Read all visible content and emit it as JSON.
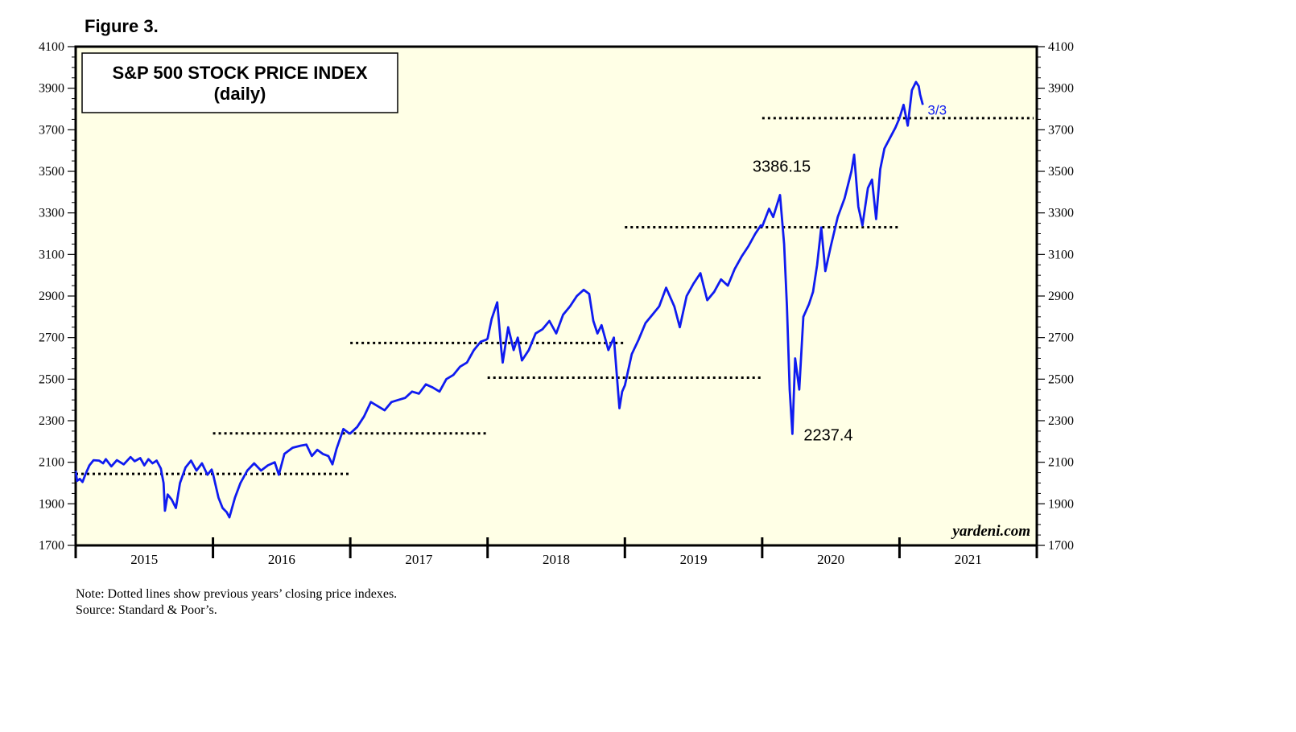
{
  "figure_label": "Figure 3.",
  "note": "Note: Dotted lines show previous years’ closing price indexes.",
  "source": "Source: Standard & Poor’s.",
  "colors": {
    "plot_background": "#ffffe6",
    "series": "#0f1bf0",
    "frame": "#000000"
  },
  "chart_data": {
    "type": "line",
    "title": "S&P 500 STOCK PRICE INDEX",
    "subtitle": "(daily)",
    "watermark": "yardeni.com",
    "ylim": [
      1700,
      4100
    ],
    "y_ticks": [
      1700,
      1900,
      2100,
      2300,
      2500,
      2700,
      2900,
      3100,
      3300,
      3500,
      3700,
      3900,
      4100
    ],
    "x_range": [
      2015.0,
      2022.0
    ],
    "x_boundaries": [
      2015,
      2016,
      2017,
      2018,
      2019,
      2020,
      2021,
      2022
    ],
    "x_labels": [
      "2015",
      "2016",
      "2017",
      "2018",
      "2019",
      "2020",
      "2021"
    ],
    "grid": false,
    "series": [
      {
        "values": [
          [
            2015.0,
            2058
          ],
          [
            2015.01,
            2010
          ],
          [
            2015.03,
            2020
          ],
          [
            2015.05,
            2005
          ],
          [
            2015.07,
            2040
          ],
          [
            2015.1,
            2085
          ],
          [
            2015.13,
            2110
          ],
          [
            2015.17,
            2108
          ],
          [
            2015.2,
            2095
          ],
          [
            2015.22,
            2115
          ],
          [
            2015.26,
            2080
          ],
          [
            2015.3,
            2110
          ],
          [
            2015.35,
            2090
          ],
          [
            2015.4,
            2125
          ],
          [
            2015.43,
            2105
          ],
          [
            2015.47,
            2120
          ],
          [
            2015.5,
            2085
          ],
          [
            2015.53,
            2115
          ],
          [
            2015.56,
            2095
          ],
          [
            2015.59,
            2108
          ],
          [
            2015.62,
            2070
          ],
          [
            2015.64,
            2000
          ],
          [
            2015.65,
            1867
          ],
          [
            2015.67,
            1945
          ],
          [
            2015.7,
            1920
          ],
          [
            2015.73,
            1880
          ],
          [
            2015.76,
            2000
          ],
          [
            2015.8,
            2075
          ],
          [
            2015.84,
            2108
          ],
          [
            2015.88,
            2060
          ],
          [
            2015.92,
            2095
          ],
          [
            2015.96,
            2040
          ],
          [
            2015.99,
            2065
          ],
          [
            2016.0,
            2044
          ],
          [
            2016.04,
            1930
          ],
          [
            2016.07,
            1880
          ],
          [
            2016.1,
            1860
          ],
          [
            2016.12,
            1835
          ],
          [
            2016.16,
            1930
          ],
          [
            2016.2,
            2000
          ],
          [
            2016.25,
            2060
          ],
          [
            2016.3,
            2095
          ],
          [
            2016.35,
            2060
          ],
          [
            2016.4,
            2085
          ],
          [
            2016.45,
            2100
          ],
          [
            2016.48,
            2040
          ],
          [
            2016.52,
            2140
          ],
          [
            2016.58,
            2170
          ],
          [
            2016.64,
            2180
          ],
          [
            2016.68,
            2185
          ],
          [
            2016.72,
            2130
          ],
          [
            2016.76,
            2160
          ],
          [
            2016.8,
            2140
          ],
          [
            2016.84,
            2130
          ],
          [
            2016.87,
            2090
          ],
          [
            2016.9,
            2165
          ],
          [
            2016.95,
            2260
          ],
          [
            2016.99,
            2240
          ],
          [
            2017.0,
            2239
          ],
          [
            2017.05,
            2270
          ],
          [
            2017.1,
            2320
          ],
          [
            2017.15,
            2390
          ],
          [
            2017.2,
            2370
          ],
          [
            2017.25,
            2350
          ],
          [
            2017.3,
            2390
          ],
          [
            2017.35,
            2400
          ],
          [
            2017.4,
            2410
          ],
          [
            2017.45,
            2440
          ],
          [
            2017.5,
            2430
          ],
          [
            2017.55,
            2475
          ],
          [
            2017.6,
            2460
          ],
          [
            2017.65,
            2440
          ],
          [
            2017.7,
            2500
          ],
          [
            2017.75,
            2520
          ],
          [
            2017.8,
            2560
          ],
          [
            2017.85,
            2580
          ],
          [
            2017.9,
            2640
          ],
          [
            2017.95,
            2680
          ],
          [
            2017.99,
            2690
          ],
          [
            2018.0,
            2695
          ],
          [
            2018.03,
            2790
          ],
          [
            2018.07,
            2870
          ],
          [
            2018.1,
            2640
          ],
          [
            2018.11,
            2580
          ],
          [
            2018.15,
            2750
          ],
          [
            2018.19,
            2640
          ],
          [
            2018.22,
            2700
          ],
          [
            2018.25,
            2590
          ],
          [
            2018.3,
            2640
          ],
          [
            2018.35,
            2720
          ],
          [
            2018.4,
            2740
          ],
          [
            2018.45,
            2780
          ],
          [
            2018.5,
            2720
          ],
          [
            2018.55,
            2810
          ],
          [
            2018.6,
            2850
          ],
          [
            2018.65,
            2900
          ],
          [
            2018.7,
            2930
          ],
          [
            2018.74,
            2910
          ],
          [
            2018.77,
            2780
          ],
          [
            2018.8,
            2720
          ],
          [
            2018.83,
            2760
          ],
          [
            2018.88,
            2640
          ],
          [
            2018.92,
            2700
          ],
          [
            2018.96,
            2360
          ],
          [
            2018.98,
            2440
          ],
          [
            2019.0,
            2470
          ],
          [
            2019.05,
            2620
          ],
          [
            2019.1,
            2690
          ],
          [
            2019.15,
            2770
          ],
          [
            2019.2,
            2810
          ],
          [
            2019.25,
            2850
          ],
          [
            2019.3,
            2940
          ],
          [
            2019.36,
            2850
          ],
          [
            2019.4,
            2750
          ],
          [
            2019.45,
            2900
          ],
          [
            2019.5,
            2960
          ],
          [
            2019.55,
            3010
          ],
          [
            2019.6,
            2880
          ],
          [
            2019.65,
            2920
          ],
          [
            2019.7,
            2980
          ],
          [
            2019.75,
            2950
          ],
          [
            2019.8,
            3030
          ],
          [
            2019.85,
            3090
          ],
          [
            2019.9,
            3140
          ],
          [
            2019.95,
            3200
          ],
          [
            2019.99,
            3240
          ],
          [
            2020.0,
            3235
          ],
          [
            2020.05,
            3320
          ],
          [
            2020.08,
            3280
          ],
          [
            2020.13,
            3386
          ],
          [
            2020.16,
            3150
          ],
          [
            2020.18,
            2850
          ],
          [
            2020.2,
            2450
          ],
          [
            2020.22,
            2237
          ],
          [
            2020.24,
            2600
          ],
          [
            2020.27,
            2450
          ],
          [
            2020.3,
            2800
          ],
          [
            2020.34,
            2860
          ],
          [
            2020.37,
            2920
          ],
          [
            2020.4,
            3050
          ],
          [
            2020.43,
            3230
          ],
          [
            2020.46,
            3020
          ],
          [
            2020.5,
            3140
          ],
          [
            2020.55,
            3280
          ],
          [
            2020.6,
            3370
          ],
          [
            2020.65,
            3500
          ],
          [
            2020.67,
            3580
          ],
          [
            2020.7,
            3330
          ],
          [
            2020.73,
            3240
          ],
          [
            2020.77,
            3420
          ],
          [
            2020.8,
            3460
          ],
          [
            2020.83,
            3270
          ],
          [
            2020.86,
            3510
          ],
          [
            2020.89,
            3610
          ],
          [
            2020.93,
            3660
          ],
          [
            2020.97,
            3710
          ],
          [
            2021.0,
            3756
          ],
          [
            2021.03,
            3820
          ],
          [
            2021.06,
            3720
          ],
          [
            2021.09,
            3890
          ],
          [
            2021.12,
            3930
          ],
          [
            2021.14,
            3910
          ],
          [
            2021.15,
            3870
          ],
          [
            2021.17,
            3820
          ]
        ]
      }
    ],
    "prior_year_closes": [
      {
        "start": 2015.0,
        "end": 2017.0,
        "value": 2044
      },
      {
        "start": 2016.0,
        "end": 2018.0,
        "value": 2239
      },
      {
        "start": 2017.0,
        "end": 2019.0,
        "value": 2674
      },
      {
        "start": 2018.0,
        "end": 2020.0,
        "value": 2507
      },
      {
        "start": 2019.0,
        "end": 2021.0,
        "value": 3231
      },
      {
        "start": 2020.0,
        "end": 2022.0,
        "value": 3756
      }
    ],
    "annotations": [
      {
        "text": "3386.15",
        "x": 2020.13,
        "y": 3386
      },
      {
        "text": "2237.4",
        "x": 2020.22,
        "y": 2237
      },
      {
        "text": "3/3",
        "x": 2021.17,
        "y": 3820
      }
    ]
  }
}
